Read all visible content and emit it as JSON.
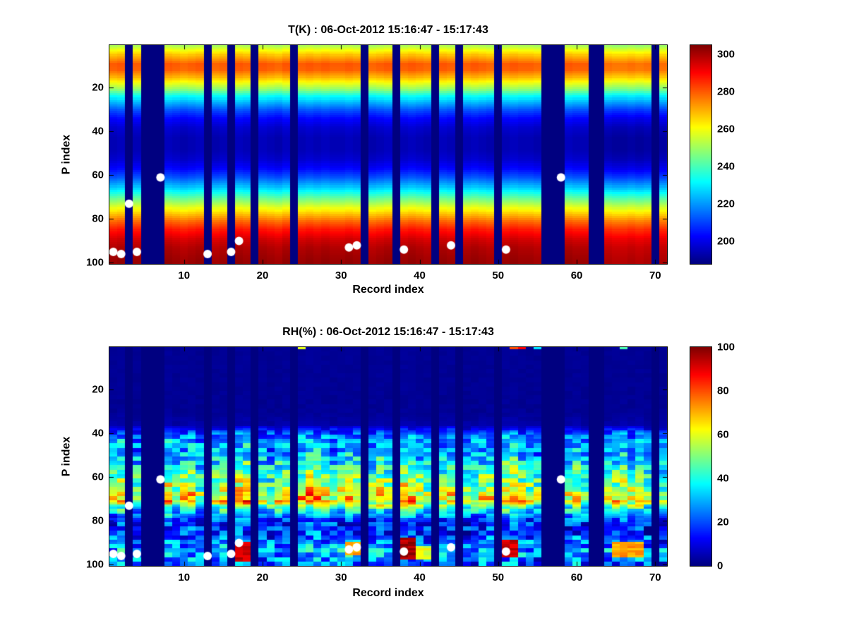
{
  "figure": {
    "background": "#ffffff",
    "marker_color": "#ffffff"
  },
  "chart_data": [
    {
      "type": "heatmap",
      "title": "T(K) : 06-Oct-2012 15:16:47 - 15:17:43",
      "xlabel": "Record index",
      "ylabel": "P index",
      "x_range": [
        1,
        71
      ],
      "y_range": [
        1,
        100
      ],
      "y_direction": "reverse",
      "x_ticks": [
        10,
        20,
        30,
        40,
        50,
        60,
        70
      ],
      "y_ticks": [
        20,
        40,
        60,
        80,
        100
      ],
      "colormap": "jet",
      "value_range": [
        188,
        305
      ],
      "colorbar_ticks": [
        200,
        220,
        240,
        260,
        280,
        300
      ],
      "profile": [
        [
          1,
          252
        ],
        [
          5,
          268
        ],
        [
          9,
          280
        ],
        [
          12,
          279
        ],
        [
          15,
          270
        ],
        [
          18,
          258
        ],
        [
          21,
          247
        ],
        [
          24,
          232
        ],
        [
          27,
          222
        ],
        [
          30,
          212
        ],
        [
          34,
          203
        ],
        [
          38,
          197
        ],
        [
          43,
          194
        ],
        [
          48,
          194
        ],
        [
          53,
          197
        ],
        [
          57,
          203
        ],
        [
          61,
          212
        ],
        [
          65,
          224
        ],
        [
          69,
          238
        ],
        [
          73,
          252
        ],
        [
          77,
          266
        ],
        [
          81,
          278
        ],
        [
          85,
          288
        ],
        [
          89,
          295
        ],
        [
          93,
          299
        ],
        [
          97,
          301
        ],
        [
          100,
          302
        ]
      ],
      "column_offsets": [
        0,
        1,
        -1,
        0,
        0,
        0,
        0,
        1,
        0,
        -1,
        0,
        1,
        0,
        -1,
        0,
        0,
        1,
        0,
        0,
        1,
        0,
        -1,
        1,
        0,
        0,
        1,
        0,
        1,
        0,
        0,
        1,
        0,
        0,
        -1,
        0,
        1,
        0,
        0,
        1,
        0,
        -1,
        0,
        1,
        0,
        0,
        0,
        1,
        0,
        -1,
        0,
        0,
        1,
        0,
        0,
        -1,
        0,
        0,
        0,
        1,
        0,
        0,
        0,
        0,
        -2,
        -3,
        -3,
        -2,
        -3,
        -2,
        0,
        -2
      ],
      "missing_records": [
        3,
        5,
        6,
        7,
        13,
        16,
        19,
        24,
        33,
        37,
        42,
        45,
        50,
        56,
        57,
        58,
        62,
        63,
        70
      ],
      "markers": {
        "color": "#ffffff",
        "points": [
          [
            1,
            95
          ],
          [
            2,
            96
          ],
          [
            3,
            73
          ],
          [
            4,
            95
          ],
          [
            7,
            61
          ],
          [
            13,
            96
          ],
          [
            16,
            95
          ],
          [
            17,
            90
          ],
          [
            31,
            93
          ],
          [
            32,
            92
          ],
          [
            38,
            94
          ],
          [
            44,
            92
          ],
          [
            51,
            94
          ],
          [
            58,
            61
          ]
        ]
      }
    },
    {
      "type": "heatmap",
      "title": "RH(%) : 06-Oct-2012 15:16:47 - 15:17:43",
      "xlabel": "Record index",
      "ylabel": "P index",
      "x_range": [
        1,
        71
      ],
      "y_range": [
        1,
        100
      ],
      "y_direction": "reverse",
      "x_ticks": [
        10,
        20,
        30,
        40,
        50,
        60,
        70
      ],
      "y_ticks": [
        20,
        40,
        60,
        80,
        100
      ],
      "colormap": "jet",
      "value_range": [
        0,
        100
      ],
      "colorbar_ticks": [
        0,
        20,
        40,
        60,
        80,
        100
      ],
      "profile": [
        [
          1,
          2
        ],
        [
          30,
          2
        ],
        [
          36,
          4
        ],
        [
          40,
          22
        ],
        [
          44,
          30
        ],
        [
          48,
          28
        ],
        [
          52,
          34
        ],
        [
          56,
          40
        ],
        [
          60,
          46
        ],
        [
          64,
          52
        ],
        [
          68,
          62
        ],
        [
          71,
          66
        ],
        [
          74,
          42
        ],
        [
          78,
          24
        ],
        [
          82,
          16
        ],
        [
          86,
          18
        ],
        [
          90,
          26
        ],
        [
          94,
          30
        ],
        [
          100,
          22
        ]
      ],
      "noise_amplitude": [
        [
          1,
          0.5
        ],
        [
          36,
          1
        ],
        [
          40,
          12
        ],
        [
          50,
          15
        ],
        [
          60,
          16
        ],
        [
          70,
          16
        ],
        [
          76,
          14
        ],
        [
          85,
          16
        ],
        [
          100,
          18
        ]
      ],
      "noise_seed": 7,
      "column_factors": [
        0.9,
        1.1,
        1.0,
        0.85,
        1.0,
        1.0,
        1.0,
        1.15,
        0.9,
        1.0,
        1.1,
        0.85,
        1.0,
        0.95,
        1.05,
        1.0,
        1.15,
        1.2,
        1.1,
        0.9,
        0.85,
        1.0,
        1.05,
        1.0,
        1.1,
        1.2,
        1.15,
        1.05,
        0.9,
        1.0,
        1.1,
        1.05,
        1.0,
        0.95,
        1.1,
        1.0,
        1.0,
        1.2,
        1.15,
        1.0,
        0.9,
        1.0,
        0.95,
        1.05,
        1.0,
        0.85,
        0.9,
        1.0,
        1.05,
        1.0,
        1.15,
        1.2,
        1.0,
        0.9,
        0.85,
        1.0,
        1.0,
        1.0,
        0.95,
        1.05,
        0.9,
        1.0,
        1.0,
        0.9,
        1.0,
        1.1,
        0.95,
        1.05,
        0.9,
        1.0,
        0.85
      ],
      "missing_records": [
        3,
        5,
        6,
        7,
        13,
        16,
        19,
        24,
        33,
        37,
        42,
        45,
        50,
        56,
        57,
        58,
        62,
        63,
        70
      ],
      "hotspots": [
        [
          17,
          18,
          90,
          98,
          92
        ],
        [
          31,
          32,
          90,
          95,
          70
        ],
        [
          38,
          39,
          88,
          97,
          96
        ],
        [
          40,
          41,
          92,
          97,
          60
        ],
        [
          51,
          52,
          89,
          96,
          92
        ],
        [
          65,
          68,
          90,
          96,
          72
        ]
      ],
      "top_row_specks": [
        [
          24,
          90
        ],
        [
          25,
          60
        ],
        [
          52,
          80
        ],
        [
          53,
          88
        ],
        [
          55,
          35
        ],
        [
          56,
          60
        ],
        [
          66,
          45
        ]
      ],
      "markers": {
        "color": "#ffffff",
        "points": [
          [
            1,
            95
          ],
          [
            2,
            96
          ],
          [
            3,
            73
          ],
          [
            4,
            95
          ],
          [
            7,
            61
          ],
          [
            13,
            96
          ],
          [
            16,
            95
          ],
          [
            17,
            90
          ],
          [
            31,
            93
          ],
          [
            32,
            92
          ],
          [
            38,
            94
          ],
          [
            44,
            92
          ],
          [
            51,
            94
          ],
          [
            58,
            61
          ]
        ]
      }
    }
  ]
}
